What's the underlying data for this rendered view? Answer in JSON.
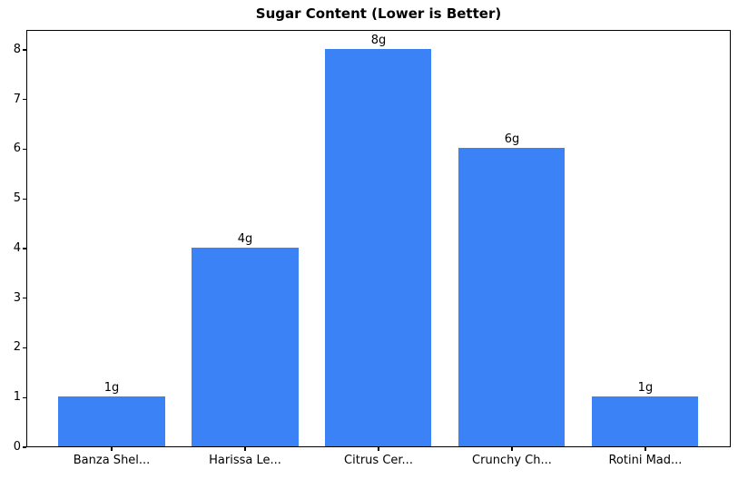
{
  "title": "Sugar Content (Lower is Better)",
  "chart_data": {
    "type": "bar",
    "title": "Sugar Content (Lower is Better)",
    "xlabel": "",
    "ylabel": "",
    "categories": [
      "Banza Shel...",
      "Harissa Le...",
      "Citrus Cer...",
      "Crunchy Ch...",
      "Rotini Mad..."
    ],
    "values": [
      1,
      4,
      8,
      6,
      1
    ],
    "bar_labels": [
      "1g",
      "4g",
      "8g",
      "6g",
      "1g"
    ],
    "yticks": [
      0,
      1,
      2,
      3,
      4,
      5,
      6,
      7,
      8
    ],
    "ylim": [
      0,
      8.4
    ],
    "grid": false,
    "legend": null,
    "bar_color": "#3b82f6",
    "text_color": "#000000",
    "axis_color": "#000000",
    "background_color": "#ffffff"
  }
}
